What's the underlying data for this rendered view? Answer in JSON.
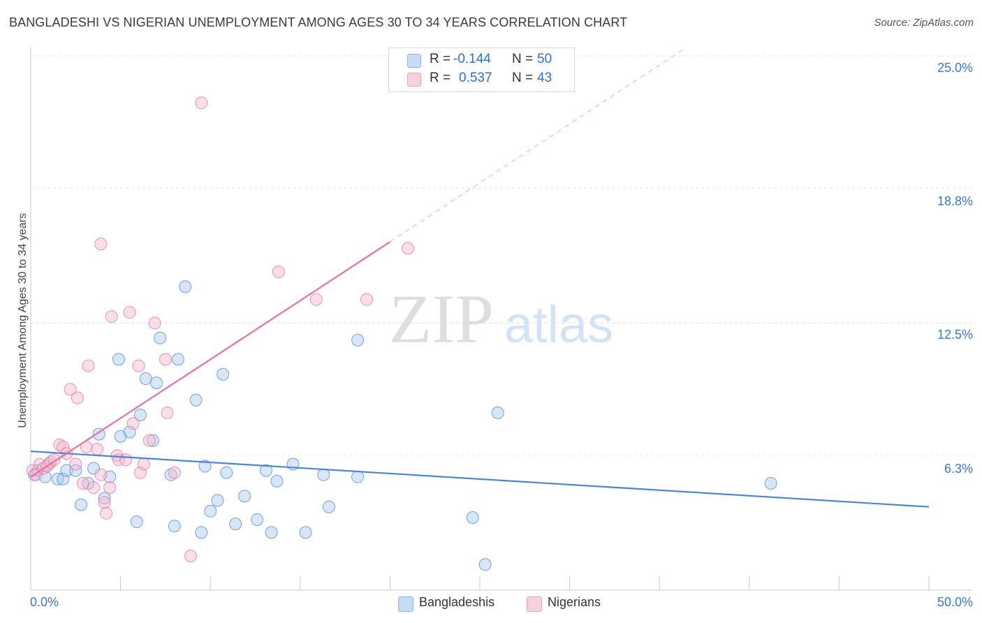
{
  "header": {
    "title": "BANGLADESHI VS NIGERIAN UNEMPLOYMENT AMONG AGES 30 TO 34 YEARS CORRELATION CHART",
    "source": "Source: ZipAtlas.com"
  },
  "watermark": {
    "zip": "ZIP",
    "atlas": "atlas"
  },
  "legend": {
    "rows": [
      {
        "r_label": "R =",
        "r_value": "-0.144",
        "n_label": "N =",
        "n_value": "50",
        "color": "#a8c8f0"
      },
      {
        "r_label": "R =",
        "r_value": "0.537",
        "n_label": "N =",
        "n_value": "43",
        "color": "#f5b8cb"
      }
    ]
  },
  "bottom_legend": {
    "items": [
      {
        "label": "Bangladeshis",
        "color": "#a8c8f0"
      },
      {
        "label": "Nigerians",
        "color": "#f5b8cb"
      }
    ]
  },
  "chart_data": {
    "type": "scatter",
    "title": "BANGLADESHI VS NIGERIAN UNEMPLOYMENT AMONG AGES 30 TO 34 YEARS CORRELATION CHART",
    "xlabel": "",
    "ylabel": "Unemployment Among Ages 30 to 34 years",
    "xlim": [
      0,
      50
    ],
    "ylim": [
      0,
      25.5
    ],
    "x_tick_labels": [
      "0.0%",
      "50.0%"
    ],
    "y_ticks": [
      6.3,
      12.5,
      18.8,
      25.0
    ],
    "y_tick_labels": [
      "6.3%",
      "12.5%",
      "18.8%",
      "25.0%"
    ],
    "grid": true,
    "legend_position": "top-center",
    "series": [
      {
        "name": "Bangladeshis",
        "color": "#4a86d8",
        "fill": "#a8c8f0",
        "points": [
          [
            0.2,
            5.4
          ],
          [
            0.4,
            5.6
          ],
          [
            0.8,
            5.3
          ],
          [
            1.0,
            5.9
          ],
          [
            1.5,
            5.2
          ],
          [
            1.8,
            5.2
          ],
          [
            2.0,
            5.6
          ],
          [
            2.5,
            5.6
          ],
          [
            2.8,
            4.0
          ],
          [
            3.2,
            5.0
          ],
          [
            3.5,
            5.7
          ],
          [
            3.8,
            7.3
          ],
          [
            4.1,
            4.3
          ],
          [
            4.4,
            5.3
          ],
          [
            4.9,
            10.8
          ],
          [
            5.0,
            7.2
          ],
          [
            5.5,
            7.4
          ],
          [
            5.9,
            3.2
          ],
          [
            6.1,
            8.2
          ],
          [
            6.4,
            9.9
          ],
          [
            6.8,
            7.0
          ],
          [
            7.0,
            9.7
          ],
          [
            7.2,
            11.8
          ],
          [
            7.8,
            5.4
          ],
          [
            8.0,
            3.0
          ],
          [
            8.2,
            10.8
          ],
          [
            8.6,
            14.2
          ],
          [
            9.2,
            8.9
          ],
          [
            9.5,
            2.7
          ],
          [
            9.7,
            5.8
          ],
          [
            10.0,
            3.7
          ],
          [
            10.4,
            4.2
          ],
          [
            10.7,
            10.1
          ],
          [
            10.9,
            5.5
          ],
          [
            11.4,
            3.1
          ],
          [
            11.9,
            4.4
          ],
          [
            12.6,
            3.3
          ],
          [
            13.1,
            5.6
          ],
          [
            13.4,
            2.7
          ],
          [
            13.7,
            5.1
          ],
          [
            14.6,
            5.9
          ],
          [
            15.3,
            2.7
          ],
          [
            16.3,
            5.4
          ],
          [
            16.6,
            3.9
          ],
          [
            18.2,
            11.7
          ],
          [
            18.2,
            5.3
          ],
          [
            24.6,
            3.4
          ],
          [
            25.3,
            1.2
          ],
          [
            26.0,
            8.3
          ],
          [
            41.2,
            5.0
          ]
        ]
      },
      {
        "name": "Nigerians",
        "color": "#e8729a",
        "fill": "#f5b8cb",
        "points": [
          [
            0.1,
            5.6
          ],
          [
            0.3,
            5.4
          ],
          [
            0.5,
            5.9
          ],
          [
            0.7,
            5.7
          ],
          [
            0.9,
            5.8
          ],
          [
            1.1,
            6.0
          ],
          [
            1.3,
            6.1
          ],
          [
            1.6,
            6.8
          ],
          [
            1.8,
            6.7
          ],
          [
            2.0,
            6.4
          ],
          [
            2.2,
            9.4
          ],
          [
            2.5,
            5.9
          ],
          [
            2.6,
            9.0
          ],
          [
            2.9,
            5.0
          ],
          [
            3.1,
            6.7
          ],
          [
            3.2,
            10.5
          ],
          [
            3.5,
            4.8
          ],
          [
            3.7,
            6.6
          ],
          [
            3.9,
            5.4
          ],
          [
            3.9,
            16.2
          ],
          [
            4.1,
            4.1
          ],
          [
            4.2,
            3.6
          ],
          [
            4.4,
            4.8
          ],
          [
            4.5,
            12.8
          ],
          [
            4.8,
            6.3
          ],
          [
            4.9,
            6.1
          ],
          [
            5.3,
            6.1
          ],
          [
            5.5,
            13.0
          ],
          [
            5.7,
            7.8
          ],
          [
            6.0,
            10.5
          ],
          [
            6.1,
            5.5
          ],
          [
            6.3,
            5.9
          ],
          [
            6.6,
            7.0
          ],
          [
            6.9,
            12.5
          ],
          [
            7.5,
            10.8
          ],
          [
            7.6,
            8.3
          ],
          [
            8.0,
            5.5
          ],
          [
            8.9,
            1.6
          ],
          [
            9.5,
            22.8
          ],
          [
            13.8,
            14.9
          ],
          [
            15.9,
            13.6
          ],
          [
            18.7,
            13.6
          ],
          [
            21.0,
            16.0
          ]
        ]
      }
    ],
    "trendlines": [
      {
        "series": "Bangladeshis",
        "x": [
          0,
          50
        ],
        "y": [
          6.5,
          3.9
        ],
        "style": "solid"
      },
      {
        "series": "Nigerians",
        "x": [
          0,
          20
        ],
        "y": [
          5.3,
          16.3
        ],
        "style": "solid"
      },
      {
        "series": "Nigerians",
        "x": [
          20,
          36.5
        ],
        "y": [
          16.3,
          25.4
        ],
        "style": "dashed"
      }
    ]
  }
}
